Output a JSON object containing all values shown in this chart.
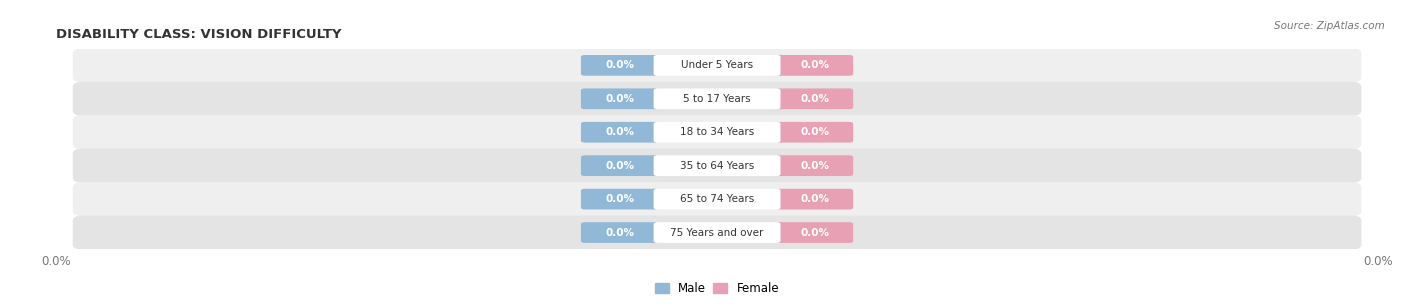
{
  "title": "DISABILITY CLASS: VISION DIFFICULTY",
  "source": "Source: ZipAtlas.com",
  "categories": [
    "Under 5 Years",
    "5 to 17 Years",
    "18 to 34 Years",
    "35 to 64 Years",
    "65 to 74 Years",
    "75 Years and over"
  ],
  "male_values": [
    0.0,
    0.0,
    0.0,
    0.0,
    0.0,
    0.0
  ],
  "female_values": [
    0.0,
    0.0,
    0.0,
    0.0,
    0.0,
    0.0
  ],
  "male_color": "#92b8d8",
  "female_color": "#e8a0b4",
  "row_color_odd": "#efefef",
  "row_color_even": "#e4e4e4",
  "label_color": "#333333",
  "title_color": "#333333",
  "source_color": "#777777",
  "tick_color": "#777777",
  "legend_male": "Male",
  "legend_female": "Female",
  "figsize": [
    14.06,
    3.04
  ],
  "dpi": 100
}
